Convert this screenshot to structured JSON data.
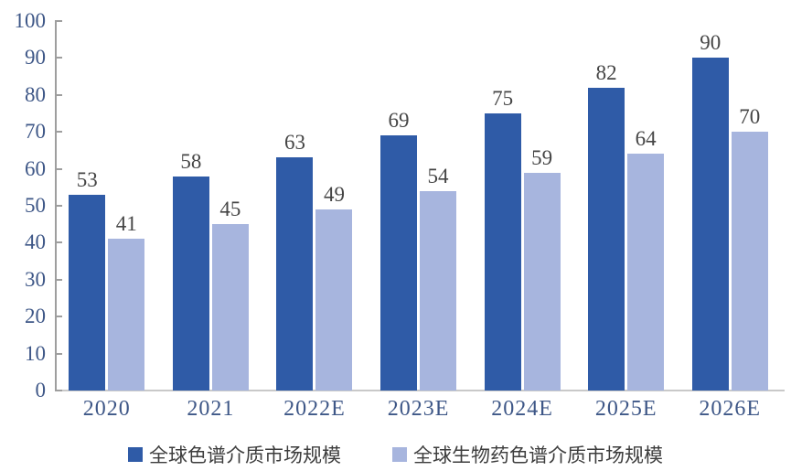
{
  "chart_data": {
    "type": "bar",
    "title": "",
    "xlabel": "",
    "ylabel": "",
    "categories": [
      "2020",
      "2021",
      "2022E",
      "2023E",
      "2024E",
      "2025E",
      "2026E"
    ],
    "series": [
      {
        "name": "全球色谱介质市场规模",
        "color": "#2F5BA7",
        "values": [
          53,
          58,
          63,
          69,
          75,
          82,
          90
        ]
      },
      {
        "name": "全球生物药色谱介质市场规模",
        "color": "#A7B5DE",
        "values": [
          41,
          45,
          49,
          54,
          59,
          64,
          70
        ]
      }
    ],
    "ylim": [
      0,
      100
    ],
    "yticks": [
      0,
      10,
      20,
      30,
      40,
      50,
      60,
      70,
      80,
      90,
      100
    ],
    "grid": false,
    "legend_position": "bottom",
    "bar_value_labels": true
  },
  "style_colors": {
    "axis_line": "#9E9E9E",
    "baseline": "#C9C9C9",
    "axis_label": "#3E5787",
    "value_label": "#454545",
    "legend_text": "#3D3D3D",
    "background": "#FFFFFF"
  }
}
